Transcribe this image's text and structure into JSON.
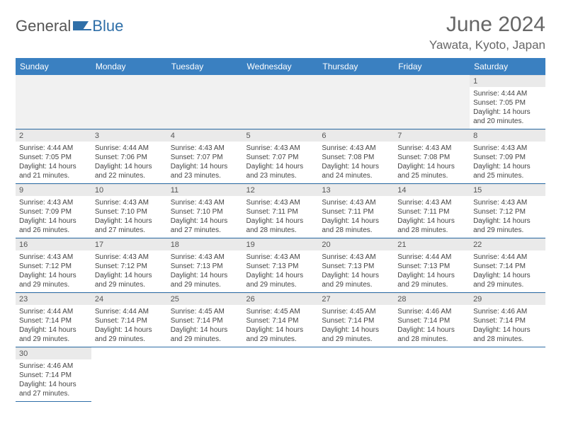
{
  "brand": {
    "word1": "General",
    "word2": "Blue"
  },
  "title": "June 2024",
  "location": "Yawata, Kyoto, Japan",
  "colors": {
    "header_bg": "#3a80c1",
    "rule": "#2f6fa8",
    "daynum_bg": "#eaeaea",
    "text": "#444444",
    "title_color": "#666666"
  },
  "calendar": {
    "weekdays": [
      "Sunday",
      "Monday",
      "Tuesday",
      "Wednesday",
      "Thursday",
      "Friday",
      "Saturday"
    ],
    "leading_blanks": 6,
    "days": [
      {
        "n": 1,
        "sunrise": "4:44 AM",
        "sunset": "7:05 PM",
        "daylight": "14 hours and 20 minutes."
      },
      {
        "n": 2,
        "sunrise": "4:44 AM",
        "sunset": "7:05 PM",
        "daylight": "14 hours and 21 minutes."
      },
      {
        "n": 3,
        "sunrise": "4:44 AM",
        "sunset": "7:06 PM",
        "daylight": "14 hours and 22 minutes."
      },
      {
        "n": 4,
        "sunrise": "4:43 AM",
        "sunset": "7:07 PM",
        "daylight": "14 hours and 23 minutes."
      },
      {
        "n": 5,
        "sunrise": "4:43 AM",
        "sunset": "7:07 PM",
        "daylight": "14 hours and 23 minutes."
      },
      {
        "n": 6,
        "sunrise": "4:43 AM",
        "sunset": "7:08 PM",
        "daylight": "14 hours and 24 minutes."
      },
      {
        "n": 7,
        "sunrise": "4:43 AM",
        "sunset": "7:08 PM",
        "daylight": "14 hours and 25 minutes."
      },
      {
        "n": 8,
        "sunrise": "4:43 AM",
        "sunset": "7:09 PM",
        "daylight": "14 hours and 25 minutes."
      },
      {
        "n": 9,
        "sunrise": "4:43 AM",
        "sunset": "7:09 PM",
        "daylight": "14 hours and 26 minutes."
      },
      {
        "n": 10,
        "sunrise": "4:43 AM",
        "sunset": "7:10 PM",
        "daylight": "14 hours and 27 minutes."
      },
      {
        "n": 11,
        "sunrise": "4:43 AM",
        "sunset": "7:10 PM",
        "daylight": "14 hours and 27 minutes."
      },
      {
        "n": 12,
        "sunrise": "4:43 AM",
        "sunset": "7:11 PM",
        "daylight": "14 hours and 28 minutes."
      },
      {
        "n": 13,
        "sunrise": "4:43 AM",
        "sunset": "7:11 PM",
        "daylight": "14 hours and 28 minutes."
      },
      {
        "n": 14,
        "sunrise": "4:43 AM",
        "sunset": "7:11 PM",
        "daylight": "14 hours and 28 minutes."
      },
      {
        "n": 15,
        "sunrise": "4:43 AM",
        "sunset": "7:12 PM",
        "daylight": "14 hours and 29 minutes."
      },
      {
        "n": 16,
        "sunrise": "4:43 AM",
        "sunset": "7:12 PM",
        "daylight": "14 hours and 29 minutes."
      },
      {
        "n": 17,
        "sunrise": "4:43 AM",
        "sunset": "7:12 PM",
        "daylight": "14 hours and 29 minutes."
      },
      {
        "n": 18,
        "sunrise": "4:43 AM",
        "sunset": "7:13 PM",
        "daylight": "14 hours and 29 minutes."
      },
      {
        "n": 19,
        "sunrise": "4:43 AM",
        "sunset": "7:13 PM",
        "daylight": "14 hours and 29 minutes."
      },
      {
        "n": 20,
        "sunrise": "4:43 AM",
        "sunset": "7:13 PM",
        "daylight": "14 hours and 29 minutes."
      },
      {
        "n": 21,
        "sunrise": "4:44 AM",
        "sunset": "7:13 PM",
        "daylight": "14 hours and 29 minutes."
      },
      {
        "n": 22,
        "sunrise": "4:44 AM",
        "sunset": "7:14 PM",
        "daylight": "14 hours and 29 minutes."
      },
      {
        "n": 23,
        "sunrise": "4:44 AM",
        "sunset": "7:14 PM",
        "daylight": "14 hours and 29 minutes."
      },
      {
        "n": 24,
        "sunrise": "4:44 AM",
        "sunset": "7:14 PM",
        "daylight": "14 hours and 29 minutes."
      },
      {
        "n": 25,
        "sunrise": "4:45 AM",
        "sunset": "7:14 PM",
        "daylight": "14 hours and 29 minutes."
      },
      {
        "n": 26,
        "sunrise": "4:45 AM",
        "sunset": "7:14 PM",
        "daylight": "14 hours and 29 minutes."
      },
      {
        "n": 27,
        "sunrise": "4:45 AM",
        "sunset": "7:14 PM",
        "daylight": "14 hours and 29 minutes."
      },
      {
        "n": 28,
        "sunrise": "4:46 AM",
        "sunset": "7:14 PM",
        "daylight": "14 hours and 28 minutes."
      },
      {
        "n": 29,
        "sunrise": "4:46 AM",
        "sunset": "7:14 PM",
        "daylight": "14 hours and 28 minutes."
      },
      {
        "n": 30,
        "sunrise": "4:46 AM",
        "sunset": "7:14 PM",
        "daylight": "14 hours and 27 minutes."
      }
    ],
    "labels": {
      "sunrise": "Sunrise:",
      "sunset": "Sunset:",
      "daylight": "Daylight:"
    }
  }
}
